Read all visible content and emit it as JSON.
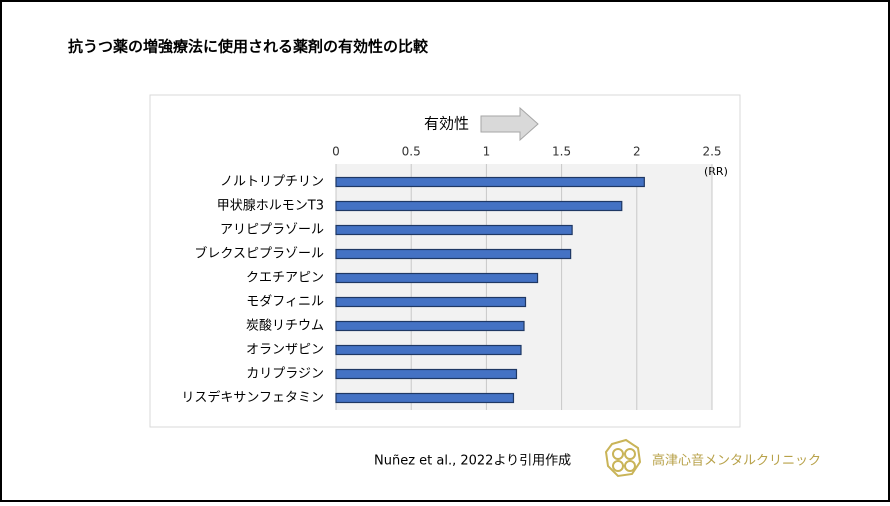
{
  "chart_data": {
    "type": "bar",
    "orientation": "horizontal",
    "title": "抗うつ薬の増強療法に使用される薬剤の有効性の比較",
    "annotation": "有効性",
    "unit_label": "(RR)",
    "source": "Nuñez et al., 2022より引用作成",
    "logo_text": "高津心音メンタルクリニック",
    "categories": [
      "ノルトリプチリン",
      "甲状腺ホルモンT3",
      "アリピプラゾール",
      "ブレクスピプラゾール",
      "クエチアピン",
      "モダフィニル",
      "炭酸リチウム",
      "オランザピン",
      "カリプラジン",
      "リスデキサンフェタミン"
    ],
    "values": [
      2.05,
      1.9,
      1.57,
      1.56,
      1.34,
      1.26,
      1.25,
      1.23,
      1.2,
      1.18
    ],
    "color": "#4472c4",
    "xlim": [
      0,
      2.5
    ],
    "xticks": [
      0,
      0.5,
      1,
      1.5,
      2,
      2.5
    ],
    "grid": true
  }
}
